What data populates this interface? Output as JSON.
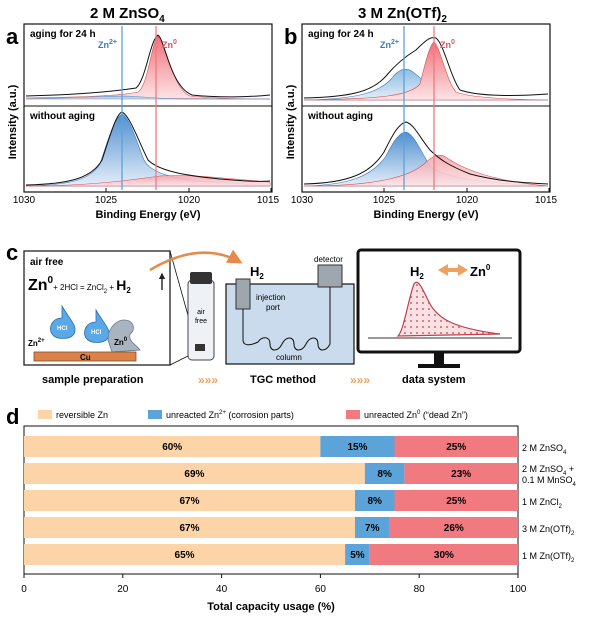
{
  "panel_a": {
    "letter": "a",
    "title_prefix": "2 M ZnSO",
    "title_sub": "4",
    "top_label": "aging for 24 h",
    "bottom_label": "without aging",
    "zn2_base": "Zn",
    "zn2_sup": "2+",
    "zn0_base": "Zn",
    "zn0_sup": "0",
    "ylabel": "Intensity (a.u.)",
    "xlabel": "Binding Energy (eV)",
    "xticks": [
      "1030",
      "1025",
      "1020",
      "1015"
    ]
  },
  "panel_b": {
    "letter": "b",
    "title_prefix": "3 M Zn(OTf)",
    "title_sub": "2",
    "top_label": "aging for 24 h",
    "bottom_label": "without aging",
    "zn2_base": "Zn",
    "zn2_sup": "2+",
    "zn0_base": "Zn",
    "zn0_sup": "0",
    "ylabel": "Intensity (a.u.)",
    "xlabel": "Binding Energy (eV)",
    "xticks": [
      "1030",
      "1025",
      "1020",
      "1015"
    ]
  },
  "panel_c": {
    "letter": "c",
    "air_free": "air free",
    "reaction_zn": "Zn",
    "reaction_zn_sup": "0",
    "reaction_mid": "+ 2HCl = ZnCl",
    "reaction_mid_sub": "2",
    "reaction_plus": " + ",
    "reaction_h2": "H",
    "reaction_h2_sub": "2",
    "hcl": "HCl",
    "zn2_label": "Zn",
    "zn2_sup": "2+",
    "zn0_label": "Zn",
    "zn0_sup": "0",
    "cu": "Cu",
    "vial_line1": "air",
    "vial_line2": "free",
    "h2_flow": "H",
    "h2_flow_sub": "2",
    "detector": "detector",
    "injection_line1": "injection",
    "injection_line2": "port",
    "column": "column",
    "monitor_h2": "H",
    "monitor_h2_sub": "2",
    "monitor_zn": "Zn",
    "monitor_zn_sup": "0",
    "step1": "sample preparation",
    "step2": "TGC method",
    "step3": "data system",
    "colors": {
      "orange": "#f0a060",
      "blue_fill": "#c9dbec",
      "line_dark": "#222222",
      "curve_red": "#e05060"
    }
  },
  "panel_d": {
    "letter": "d",
    "chart_data": {
      "type": "bar",
      "orientation": "horizontal-stacked",
      "categories": [
        "2 M ZnSO4",
        "2 M ZnSO4 + 0.1 M MnSO4",
        "1 M ZnCl2",
        "3 M Zn(OTf)2",
        "1 M Zn(OTf)2"
      ],
      "series": [
        {
          "name": "reversible Zn",
          "color": "#fcd4a7",
          "values": [
            60,
            69,
            67,
            67,
            65
          ]
        },
        {
          "name": "unreacted Zn2+ (corrosion parts)",
          "color": "#5ba3d8",
          "values": [
            15,
            8,
            8,
            7,
            5
          ]
        },
        {
          "name": "unreacted Zn0 (\"dead Zn\")",
          "color": "#f07a7f",
          "values": [
            25,
            23,
            25,
            26,
            30
          ]
        }
      ],
      "data_labels": [
        [
          "60%",
          "15%",
          "25%"
        ],
        [
          "69%",
          "8%",
          "23%"
        ],
        [
          "67%",
          "8%",
          "25%"
        ],
        [
          "67%",
          "7%",
          "26%"
        ],
        [
          "65%",
          "5%",
          "30%"
        ]
      ],
      "xlabel": "Total capacity usage (%)",
      "xlim": [
        0,
        100
      ],
      "xticks": [
        "0",
        "20",
        "40",
        "60",
        "80",
        "100"
      ],
      "legend_position": "top"
    },
    "legend": [
      {
        "text": "reversible Zn",
        "color": "#fcd4a7"
      },
      {
        "text": "unreacted Zn",
        "sup": "2+",
        "rest": " (corrosion parts)",
        "color": "#5ba3d8"
      },
      {
        "text": "unreacted Zn",
        "sup": "0",
        "rest": " (“dead Zn”)",
        "color": "#f07a7f"
      }
    ],
    "row_labels": [
      {
        "a": "2 M ZnSO",
        "sub": "4"
      },
      {
        "a": "2 M ZnSO",
        "sub": "4",
        "b": " +",
        "line2": "0.1 M MnSO",
        "sub2": "4"
      },
      {
        "a": "1 M ZnCl",
        "sub": "2"
      },
      {
        "a": "3 M Zn(OTf)",
        "sub": "2"
      },
      {
        "a": "1 M Zn(OTf)",
        "sub": "2"
      }
    ]
  }
}
